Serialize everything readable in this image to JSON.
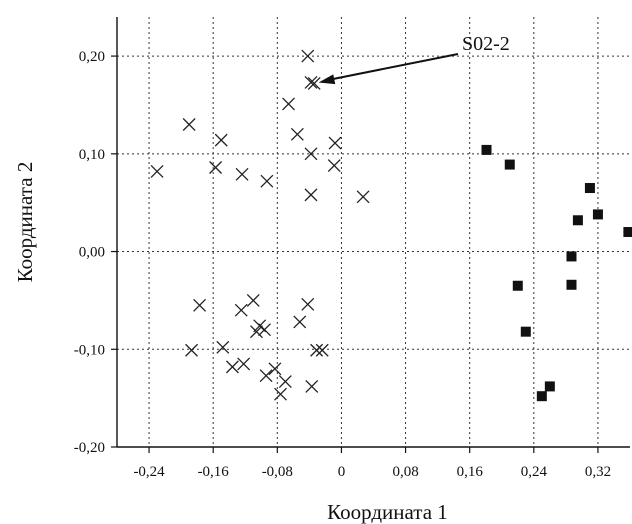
{
  "chart_data": {
    "type": "scatter",
    "title": "",
    "xlabel": "Координата 1",
    "ylabel": "Координата 2",
    "xlim": [
      -0.28,
      0.36
    ],
    "ylim": [
      -0.2,
      0.24
    ],
    "x_ticks": [
      {
        "value": -0.24,
        "label": "-0,24"
      },
      {
        "value": -0.16,
        "label": "-0,16"
      },
      {
        "value": -0.08,
        "label": "-0,08"
      },
      {
        "value": 0,
        "label": "0"
      },
      {
        "value": 0.08,
        "label": "0,08"
      },
      {
        "value": 0.16,
        "label": "0,16"
      },
      {
        "value": 0.24,
        "label": "0,24"
      },
      {
        "value": 0.32,
        "label": "0,32"
      }
    ],
    "y_ticks": [
      {
        "value": 0.2,
        "label": "0,20"
      },
      {
        "value": 0.1,
        "label": "0,10"
      },
      {
        "value": 0,
        "label": "0,00"
      },
      {
        "value": -0.1,
        "label": "-0,10"
      },
      {
        "value": -0.2,
        "label": "-0,20"
      }
    ],
    "grid": true,
    "grid_style": "dotted",
    "series": [
      {
        "marker": "cross",
        "color": "#222222",
        "points": [
          [
            -0.042,
            0.2
          ],
          [
            -0.038,
            0.173
          ],
          [
            -0.034,
            0.172
          ],
          [
            -0.066,
            0.151
          ],
          [
            -0.19,
            0.13
          ],
          [
            -0.055,
            0.12
          ],
          [
            -0.15,
            0.114
          ],
          [
            -0.038,
            0.1
          ],
          [
            -0.008,
            0.111
          ],
          [
            -0.009,
            0.088
          ],
          [
            -0.157,
            0.086
          ],
          [
            -0.23,
            0.082
          ],
          [
            -0.124,
            0.079
          ],
          [
            -0.093,
            0.072
          ],
          [
            -0.038,
            0.058
          ],
          [
            0.027,
            0.056
          ],
          [
            -0.177,
            -0.055
          ],
          [
            -0.11,
            -0.05
          ],
          [
            -0.125,
            -0.06
          ],
          [
            -0.042,
            -0.054
          ],
          [
            -0.102,
            -0.076
          ],
          [
            -0.096,
            -0.08
          ],
          [
            -0.106,
            -0.082
          ],
          [
            -0.052,
            -0.072
          ],
          [
            -0.187,
            -0.101
          ],
          [
            -0.148,
            -0.098
          ],
          [
            -0.031,
            -0.101
          ],
          [
            -0.024,
            -0.101
          ],
          [
            -0.122,
            -0.115
          ],
          [
            -0.136,
            -0.118
          ],
          [
            -0.083,
            -0.12
          ],
          [
            -0.094,
            -0.127
          ],
          [
            -0.07,
            -0.133
          ],
          [
            -0.037,
            -0.138
          ],
          [
            -0.076,
            -0.146
          ]
        ]
      },
      {
        "marker": "square",
        "color": "#111111",
        "points": [
          [
            0.181,
            0.104
          ],
          [
            0.21,
            0.089
          ],
          [
            0.31,
            0.065
          ],
          [
            0.32,
            0.038
          ],
          [
            0.358,
            0.02
          ],
          [
            0.295,
            0.032
          ],
          [
            0.287,
            -0.005
          ],
          [
            0.22,
            -0.035
          ],
          [
            0.287,
            -0.034
          ],
          [
            0.23,
            -0.082
          ],
          [
            0.26,
            -0.138
          ],
          [
            0.25,
            -0.148
          ]
        ]
      }
    ],
    "annotations": [
      {
        "text": "S02-2",
        "arrow_to": [
          -0.036,
          0.173
        ]
      }
    ]
  }
}
